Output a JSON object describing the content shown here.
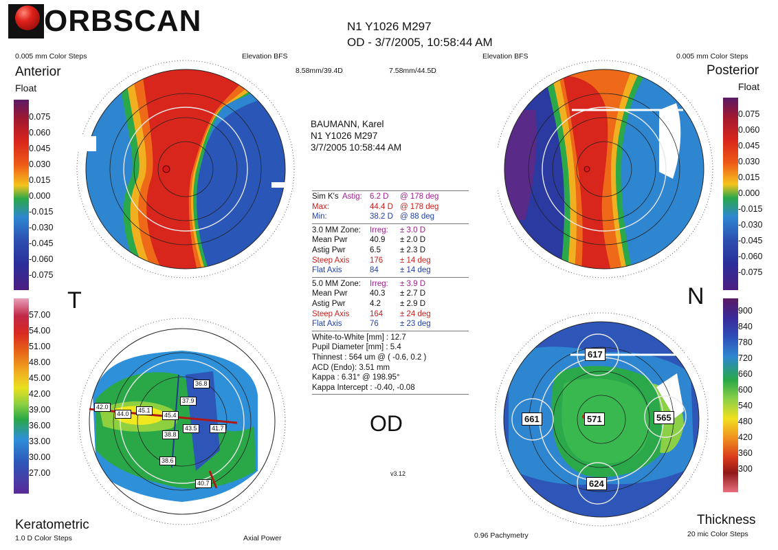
{
  "brand": {
    "logo_text": "ORBSCAN"
  },
  "header": {
    "line1": "N1 Y1026 M297",
    "line2": "OD - 3/7/2005, 10:58:44 AM"
  },
  "anterior": {
    "steps": "0.005 mm Color Steps",
    "map_type": "Elevation BFS",
    "title": "Anterior",
    "subtitle": "Float",
    "bfs_left": "8.58mm/39.4D",
    "bfs_right": "7.58mm/44.5D",
    "scale": [
      "0.075",
      "0.060",
      "0.045",
      "0.030",
      "0.015",
      "0.000",
      "-0.015",
      "-0.030",
      "-0.045",
      "-0.060",
      "-0.075"
    ]
  },
  "posterior": {
    "steps": "0.005 mm Color Steps",
    "map_type": "Elevation BFS",
    "title": "Posterior",
    "subtitle": "Float",
    "scale": [
      "0.075",
      "0.060",
      "0.045",
      "0.030",
      "0.015",
      "0.000",
      "-0.015",
      "-0.030",
      "-0.045",
      "-0.060",
      "-0.075"
    ]
  },
  "keratometric": {
    "title": "Keratometric",
    "steps": "1.0 D Color Steps",
    "map_type": "Axial Power",
    "scale": [
      "57.00",
      "54.00",
      "51.00",
      "48.00",
      "45.00",
      "42.00",
      "39.00",
      "36.00",
      "33.00",
      "30.00",
      "27.00"
    ],
    "values": [
      "42.0",
      "44.0",
      "45.1",
      "45.4",
      "38.8",
      "37.9",
      "36.8",
      "43.5",
      "41.7",
      "38.6",
      "40.7"
    ]
  },
  "thickness": {
    "title": "Thickness",
    "steps": "20 mic Color Steps",
    "map_type": "0.96 Pachymetry",
    "scale": [
      "900",
      "840",
      "780",
      "720",
      "660",
      "600",
      "540",
      "480",
      "420",
      "360",
      "300"
    ],
    "values": [
      "617",
      "661",
      "571",
      "565",
      "624"
    ]
  },
  "side_labels": {
    "temporal": "T",
    "nasal": "N"
  },
  "patient": {
    "name": "BAUMANN, Karel",
    "id": "N1 Y1026 M297",
    "datetime": "3/7/2005 10:58:44 AM"
  },
  "simk": {
    "label": "Sim K's",
    "rows": [
      {
        "name": "Astig:",
        "value": "6.2 D",
        "at": "@ 178 deg",
        "color": "#a0208c"
      },
      {
        "name": "Max:",
        "value": "44.4 D",
        "at": "@ 178 deg",
        "color": "#c8201c"
      },
      {
        "name": "Min:",
        "value": "38.2 D",
        "at": "@ 88 deg",
        "color": "#2040a8"
      }
    ]
  },
  "zone3": {
    "label": "3.0 MM Zone:",
    "rows": [
      {
        "name": "",
        "value": "Irreg:",
        "pm": "± 3.0 D",
        "color": "#a0208c"
      },
      {
        "name": "Mean Pwr",
        "value": "40.9",
        "pm": "± 2.0 D",
        "color": "#111111"
      },
      {
        "name": "Astig Pwr",
        "value": "6.5",
        "pm": "± 2.3 D",
        "color": "#111111"
      },
      {
        "name": "Steep Axis",
        "value": "176",
        "pm": "± 14 deg",
        "color": "#c8201c"
      },
      {
        "name": "Flat Axis",
        "value": "84",
        "pm": "± 14 deg",
        "color": "#2040a8"
      }
    ]
  },
  "zone5": {
    "label": "5.0 MM Zone:",
    "rows": [
      {
        "name": "",
        "value": "Irreg:",
        "pm": "± 3.9 D",
        "color": "#a0208c"
      },
      {
        "name": "Mean Pwr",
        "value": "40.3",
        "pm": "± 2.7 D",
        "color": "#111111"
      },
      {
        "name": "Astig Pwr",
        "value": "4.2",
        "pm": "± 2.9 D",
        "color": "#111111"
      },
      {
        "name": "Steep Axis",
        "value": "164",
        "pm": "± 24 deg",
        "color": "#c8201c"
      },
      {
        "name": "Flat Axis",
        "value": "76",
        "pm": "± 23 deg",
        "color": "#2040a8"
      }
    ]
  },
  "measurements": [
    "White-to-White [mm] : 12.7",
    "Pupil Diameter [mm] :  5.4",
    "Thinnest : 564 um @ ( -0.6, 0.2 )",
    "ACD (Endo): 3.51 mm",
    "Kappa : 6.31° @ 198.95°",
    "Kappa Intercept : -0.40, -0.08"
  ],
  "eye": "OD",
  "version": "v3.12",
  "colors": {
    "elevation": [
      "#6a1a6a",
      "#a01830",
      "#d8261c",
      "#ee5a18",
      "#f49a1e",
      "#f5e020",
      "#2aa84a",
      "#2e86d0",
      "#2d4fb0",
      "#2a2f9a",
      "#4c1d80"
    ],
    "power": [
      "#e8a0b8",
      "#c02848",
      "#d82a20",
      "#e86a18",
      "#f0b020",
      "#f2e820",
      "#8ed040",
      "#2aa848",
      "#2e90d8",
      "#2d56b8",
      "#5a2a98"
    ],
    "thickness": [
      "#5a1a5a",
      "#3a2a98",
      "#2d4fb8",
      "#2e86d0",
      "#2aa84a",
      "#8cd048",
      "#f0e020",
      "#f09020",
      "#d83a1c",
      "#901818",
      "#e87080"
    ]
  }
}
